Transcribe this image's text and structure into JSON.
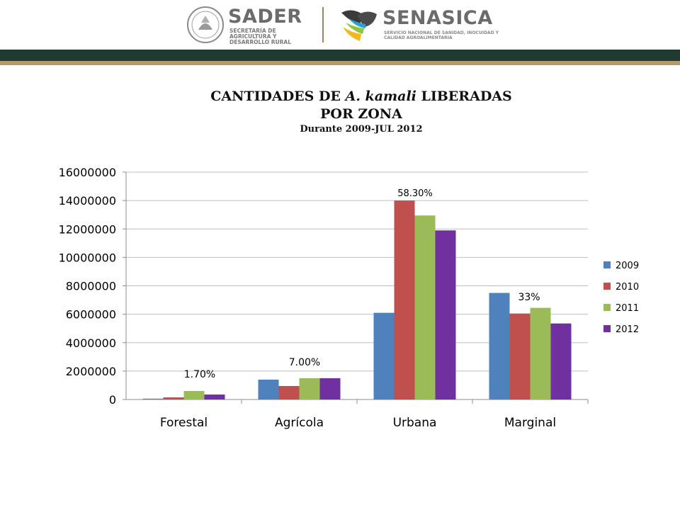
{
  "header": {
    "sader": {
      "name": "SADER",
      "subtitle": "SECRETARÍA DE AGRICULTURA Y DESARROLLO RURAL"
    },
    "senasica": {
      "name": "SENASICA",
      "subtitle": "SERVICIO NACIONAL DE SANIDAD, INOCUIDAD Y CALIDAD AGROALIMENTARIA"
    },
    "colors": {
      "band_dark": "#1f3a31",
      "band_gold": "#b49a68"
    }
  },
  "title": {
    "line1_pre": "CANTIDADES DE ",
    "line1_italic": "A. kamali",
    "line1_post": " LIBERADAS",
    "line2": "POR ZONA",
    "subtitle": "Durante 2009-JUL 2012"
  },
  "chart_data": {
    "type": "bar",
    "categories": [
      "Forestal",
      "Agrícola",
      "Urbana",
      "Marginal"
    ],
    "series": [
      {
        "name": "2009",
        "color": "#4f81bd",
        "values": [
          60000,
          1400000,
          6100000,
          7500000
        ]
      },
      {
        "name": "2010",
        "color": "#c0504d",
        "values": [
          150000,
          950000,
          14000000,
          6050000
        ]
      },
      {
        "name": "2011",
        "color": "#9bbb59",
        "values": [
          600000,
          1500000,
          12950000,
          6450000
        ]
      },
      {
        "name": "2012",
        "color": "#7030a0",
        "values": [
          350000,
          1500000,
          11900000,
          5350000
        ]
      }
    ],
    "ylim": [
      0,
      16000000
    ],
    "yticks": [
      "0",
      "2000000",
      "4000000",
      "6000000",
      "8000000",
      "10000000",
      "12000000",
      "14000000",
      "16000000"
    ],
    "annotations": [
      "1.70%",
      "7.00%",
      "58.30%",
      "33%"
    ],
    "grid": true,
    "legend_position": "right"
  }
}
